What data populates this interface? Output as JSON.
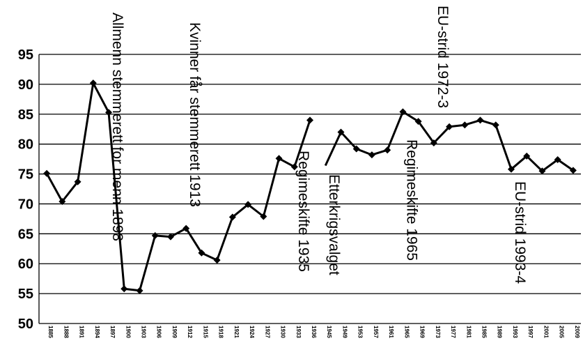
{
  "chart_data": {
    "type": "line",
    "x": [
      "1885",
      "1888",
      "1891",
      "1894",
      "1897",
      "1900",
      "1903",
      "1906",
      "1909",
      "1912",
      "1915",
      "1918",
      "1921",
      "1924",
      "1927",
      "1930",
      "1933",
      "1936",
      "1945",
      "1949",
      "1953",
      "1957",
      "1961",
      "1965",
      "1969",
      "1973",
      "1977",
      "1981",
      "1985",
      "1989",
      "1993",
      "1997",
      "2001",
      "2005",
      "2009"
    ],
    "series": [
      {
        "values": [
          75.1,
          70.4,
          73.7,
          90.2,
          85.3,
          55.8,
          55.5,
          64.7,
          64.5,
          65.9,
          61.8,
          60.6,
          67.8,
          69.9,
          67.9,
          77.6,
          76.2,
          84.0,
          76.4,
          82.0,
          79.2,
          78.2,
          79.0,
          85.4,
          83.8,
          80.2,
          82.9,
          83.2,
          84.0,
          83.2,
          75.8,
          78.0,
          75.5,
          77.4,
          75.6
        ],
        "break_after_index": 17
      }
    ],
    "ylim": [
      50,
      95
    ],
    "y_ticks": [
      "50",
      "55",
      "60",
      "65",
      "70",
      "75",
      "80",
      "85",
      "90",
      "95"
    ],
    "grid": true,
    "annotations": [
      {
        "text": "Allmenn stemmerett for menn 1898",
        "at": "1897"
      },
      {
        "text": "Kvinner får stemmerett 1913",
        "at": "1912"
      },
      {
        "text": "Regimeskifte 1935",
        "at": "1933"
      },
      {
        "text": "Etterkrigsvalget",
        "at": "1945"
      },
      {
        "text": "Regimeskifte 1965",
        "at": "1965"
      },
      {
        "text": "EU-strid 1972-3",
        "at": "1973"
      },
      {
        "text": "EU-strid 1993-4",
        "at": "1993"
      }
    ]
  }
}
